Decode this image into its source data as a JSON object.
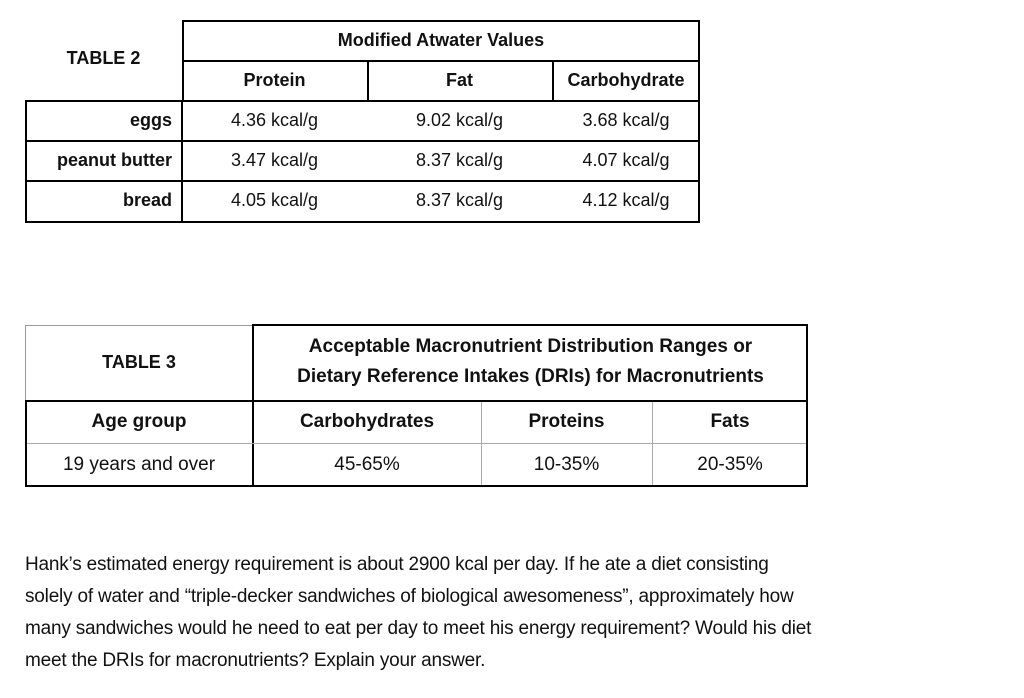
{
  "table2": {
    "label": "TABLE 2",
    "group_header": "Modified Atwater Values",
    "columns": [
      "Protein",
      "Fat",
      "Carbohydrate"
    ],
    "rows": [
      [
        "eggs",
        "4.36 kcal/g",
        "9.02 kcal/g",
        "3.68 kcal/g"
      ],
      [
        "peanut butter",
        "3.47 kcal/g",
        "8.37 kcal/g",
        "4.07 kcal/g"
      ],
      [
        "bread",
        "4.05 kcal/g",
        "8.37 kcal/g",
        "4.12 kcal/g"
      ]
    ]
  },
  "table3": {
    "label": "TABLE 3",
    "header": [
      "Acceptable Macronutrient Distribution Ranges or",
      "Dietary Reference Intakes (DRIs) for Macronutrients"
    ],
    "columns": [
      "Age group",
      "Carbohydrates",
      "Proteins",
      "Fats"
    ],
    "rows": [
      [
        "19 years and over",
        "45-65%",
        "10-35%",
        "20-35%"
      ]
    ]
  },
  "question": {
    "lines": [
      "Hank’s estimated energy requirement is about 2900 kcal per day. If he ate a diet consisting",
      "solely of water and “triple-decker sandwiches of biological awesomeness”, approximately how",
      "many sandwiches would he need to eat per day to meet his energy requirement? Would his diet",
      "meet the DRIs for macronutrients? Explain your answer."
    ]
  }
}
